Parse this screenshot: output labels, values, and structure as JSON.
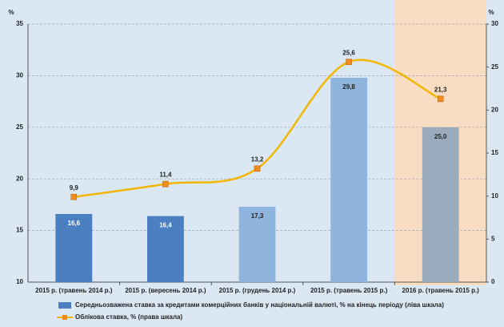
{
  "chart_data": {
    "type": "bar",
    "categories": [
      "2015 р. (травень 2014 р.)",
      "2015 р. (вересень 2014 р.)",
      "2015 р. (грудень 2014 р.)",
      "2015 р. (травень 2015 р.)",
      "2016 р. (травень 2015 р.)"
    ],
    "series": [
      {
        "name": "Середньозважена ставка за кредитами комерційних банків у національній валюті, % на кінець періоду (ліва шкала)",
        "type": "bar",
        "color": "#4a80c2",
        "colors": [
          "#4a80c2",
          "#4a80c2",
          "#8fb4dd",
          "#8fb4dd",
          "#99abbd"
        ],
        "values": [
          16.6,
          16.4,
          17.3,
          29.8,
          25.0
        ],
        "value_labels": [
          "16,6",
          "16,4",
          "17,3",
          "29,8",
          "25,0"
        ]
      },
      {
        "name": "Облікова ставка, % (права шкала)",
        "type": "line",
        "axis": "y2",
        "color": "#f2b705",
        "marker_color": "#f08c1e",
        "values": [
          9.9,
          11.4,
          13.2,
          25.6,
          21.3
        ],
        "value_labels": [
          "9,9",
          "11,4",
          "13,2",
          "25,6",
          "21,3"
        ]
      }
    ],
    "ylabel": "%",
    "y2label": "%",
    "ylim": [
      10,
      35
    ],
    "yticks": [
      10,
      15,
      20,
      25,
      30,
      35
    ],
    "y2lim": [
      0,
      30
    ],
    "y2ticks": [
      0,
      5,
      10,
      15,
      20,
      25,
      30
    ],
    "grid": true,
    "legend": "bottom"
  }
}
